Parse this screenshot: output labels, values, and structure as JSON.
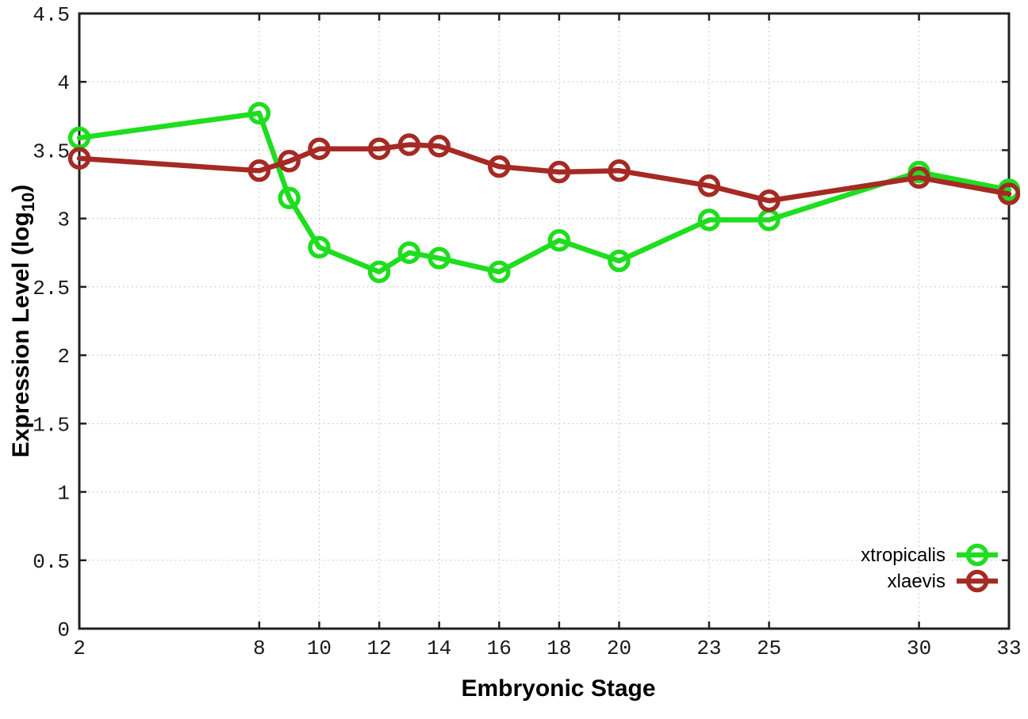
{
  "figure": {
    "background": "#ffffff",
    "border_color": "#202020",
    "grid_color": "#b8b8b8",
    "tick_color": "#202020"
  },
  "chart_data": {
    "type": "line",
    "title": "",
    "xlabel": "Embryonic Stage",
    "ylabel": {
      "main": "Expression Level (log",
      "subscript": "10",
      "close": ")"
    },
    "xlim": [
      2,
      33
    ],
    "ylim": [
      0,
      4.5
    ],
    "xticks": [
      2,
      8,
      10,
      12,
      14,
      16,
      18,
      20,
      23,
      25,
      30,
      33
    ],
    "xtick_labels": [
      "2",
      "8",
      "10",
      "12",
      "14",
      "16",
      "18",
      "20",
      "23",
      "25",
      "30",
      "33"
    ],
    "yticks": [
      0,
      0.5,
      1,
      1.5,
      2,
      2.5,
      3,
      3.5,
      4,
      4.5
    ],
    "ytick_labels": [
      "0",
      "0.5",
      "1",
      "1.5",
      "2",
      "2.5",
      "3",
      "3.5",
      "4",
      "4.5"
    ],
    "grid": true,
    "legend_position": "inside-right-lower",
    "x": [
      2,
      8,
      9,
      10,
      12,
      13,
      14,
      16,
      18,
      20,
      23,
      25,
      30,
      33
    ],
    "series": [
      {
        "name": "xtropicalis",
        "color": "#1fdd1f",
        "marker": "open-circle",
        "values": [
          3.59,
          3.77,
          3.15,
          2.79,
          2.61,
          2.75,
          2.71,
          2.61,
          2.84,
          2.69,
          2.99,
          2.99,
          3.34,
          3.21
        ]
      },
      {
        "name": "xlaevis",
        "color": "#a52a24",
        "marker": "open-circle",
        "values": [
          3.44,
          3.35,
          3.42,
          3.51,
          3.51,
          3.54,
          3.53,
          3.38,
          3.34,
          3.35,
          3.24,
          3.13,
          3.3,
          3.18
        ]
      }
    ]
  }
}
